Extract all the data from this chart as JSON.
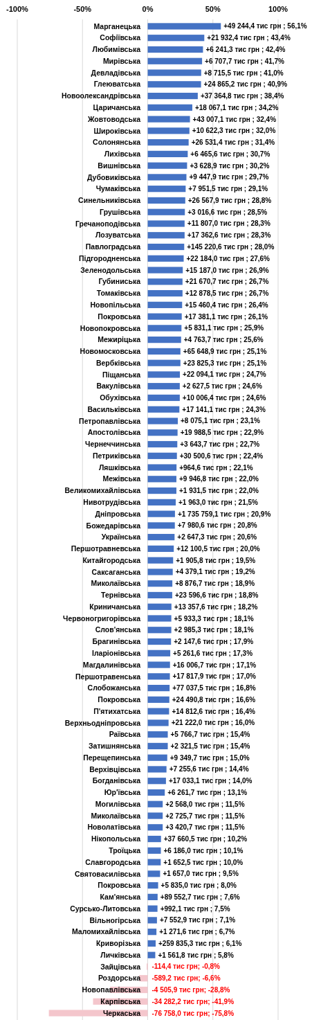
{
  "chart_data": {
    "type": "bar",
    "orientation": "horizontal",
    "categories": [
      "Марганецька",
      "Софіївська",
      "Любимівська",
      "Мирівська",
      "Девладівська",
      "Глеюватська",
      "Новоолександрівська",
      "Царичанська",
      "Жовтоводська",
      "Широківська",
      "Солонянська",
      "Лихівська",
      "Вишнівська",
      "Дубовиківська",
      "Чумаківська",
      "Синельниківська",
      "Грушівська",
      "Гречаноподівська",
      "Лозуватська",
      "Павлоградська",
      "Підгородненська",
      "Зеленодольська",
      "Губиниська",
      "Томаківська",
      "Новопільська",
      "Покровська",
      "Новопокровська",
      "Межиріцька",
      "Новомосковська",
      "Вербківська",
      "Піщанська",
      "Вакулівська",
      "Обухівська",
      "Васильківська",
      "Петропавлівська",
      "Апостолівська",
      "Чернеччинська",
      "Петриківська",
      "Ляшківська",
      "Межівська",
      "Великомихайлівська",
      "Нивотрудівська",
      "Дніпровська",
      "Божедарівська",
      "Українська",
      "Першотравневська",
      "Китайгородська",
      "Саксаганська",
      "Миколаївська",
      "Тернівська",
      "Криничанська",
      "Червоногригорівська",
      "Слов'янська",
      "Брагинівська",
      "Іларіонівська",
      "Магдалинівська",
      "Першотравенська",
      "Слобожанська",
      "Покровська",
      "П'ятихатська",
      "Верхньодніпровська",
      "Раївська",
      "Затишнянська",
      "Перещепинська",
      "Верхівцівська",
      "Богданівська",
      "Юр'ївська",
      "Могилівська",
      "Миколаївська",
      "Новолатівська",
      "Нікопольська",
      "Троїцька",
      "Славгородська",
      "Святовасилівська",
      "Покровська",
      "Кам'янська",
      "Сурсько-Литовська",
      "Вільногірська",
      "Маломихайлівська",
      "Криворізька",
      "Личківська",
      "Зайцівська",
      "Роздорська",
      "Новопавлівська",
      "Карпівська",
      "Черкаська"
    ],
    "values": [
      56.1,
      43.4,
      42.4,
      41.7,
      41.0,
      40.9,
      38.4,
      34.2,
      32.4,
      32.0,
      31.4,
      30.7,
      30.2,
      29.7,
      29.1,
      28.8,
      28.5,
      28.3,
      28.3,
      28.0,
      27.6,
      26.9,
      26.7,
      26.7,
      26.4,
      26.1,
      25.9,
      25.6,
      25.1,
      25.1,
      24.7,
      24.6,
      24.6,
      24.3,
      23.1,
      22.9,
      22.7,
      22.4,
      22.1,
      22.0,
      22.0,
      21.5,
      20.9,
      20.8,
      20.6,
      20.0,
      19.5,
      19.2,
      18.9,
      18.8,
      18.2,
      18.1,
      18.1,
      17.9,
      17.3,
      17.1,
      17.0,
      16.8,
      16.6,
      16.4,
      16.0,
      15.4,
      15.4,
      15.0,
      14.4,
      14.0,
      13.1,
      11.5,
      11.5,
      11.5,
      10.2,
      10.1,
      10.0,
      9.5,
      8.0,
      7.6,
      7.5,
      7.1,
      6.7,
      6.1,
      5.8,
      -0.8,
      -6.6,
      -28.8,
      -41.9,
      -75.8
    ],
    "value_labels": [
      "+49 244,4 тис грн ; 56,1%",
      "+21 932,4 тис грн ; 43,4%",
      "+6 241,3 тис грн ; 42,4%",
      "+6 707,7 тис грн ; 41,7%",
      "+8 715,5 тис грн ; 41,0%",
      "+24 865,2 тис грн ; 40,9%",
      "+37 364,8 тис грн ; 38,4%",
      "+18 067,1 тис грн ; 34,2%",
      "+43 007,1 тис грн ; 32,4%",
      "+10 622,3 тис грн ; 32,0%",
      "+26 531,4 тис грн ; 31,4%",
      "+6 465,6 тис грн ; 30,7%",
      "+3 628,9 тис грн ; 30,2%",
      "+9 447,9 тис грн ; 29,7%",
      "+7 951,5 тис грн ; 29,1%",
      "+26 567,9 тис грн ; 28,8%",
      "+3 016,6 тис грн ; 28,5%",
      "+11 807,0 тис грн ; 28,3%",
      "+17 362,6 тис грн ; 28,3%",
      "+145 220,6 тис грн ; 28,0%",
      "+22 184,0 тис грн ; 27,6%",
      "+15 187,0 тис грн ; 26,9%",
      "+21 670,7 тис грн ; 26,7%",
      "+12 878,5 тис грн ; 26,7%",
      "+15 460,4 тис грн ; 26,4%",
      "+17 381,1 тис грн ; 26,1%",
      "+5 831,1 тис грн ; 25,9%",
      "+4 763,7 тис грн ; 25,6%",
      "+65 648,9 тис грн ; 25,1%",
      "+23 825,3 тис грн ; 25,1%",
      "+22 094,1 тис грн ; 24,7%",
      "+2 627,5 тис грн ; 24,6%",
      "+10 006,4 тис грн ; 24,6%",
      "+17 141,1 тис грн ; 24,3%",
      "+8 075,1 тис грн ; 23,1%",
      "+19 988,5 тис грн ; 22,9%",
      "+3 643,7 тис грн ; 22,7%",
      "+30 500,6 тис грн ; 22,4%",
      "+964,6 тис грн ; 22,1%",
      "+9 946,8 тис грн ; 22,0%",
      "+1 931,5 тис грн ; 22,0%",
      "+1 963,0 тис грн ; 21,5%",
      "+1 735 759,1 тис грн ; 20,9%",
      "+7 980,6 тис грн ; 20,8%",
      "+2 647,3 тис грн ; 20,6%",
      "+12 100,5 тис грн ; 20,0%",
      "+1 905,8 тис грн ; 19,5%",
      "+4 379,1 тис грн ; 19,2%",
      "+8 876,7 тис грн ; 18,9%",
      "+23 596,6 тис грн ; 18,8%",
      "+13 357,6 тис грн ; 18,2%",
      "+5 933,3 тис грн ; 18,1%",
      "+2 985,3 тис грн ; 18,1%",
      "+2 147,6 тис грн ; 17,9%",
      "+5 261,6 тис грн ; 17,3%",
      "+16 006,7 тис грн ; 17,1%",
      "+17 817,9 тис грн ; 17,0%",
      "+77 037,5 тис грн ; 16,8%",
      "+24 490,8 тис грн ; 16,6%",
      "+14 812,6 тис грн ; 16,4%",
      "+21 222,0 тис грн ; 16,0%",
      "+5 766,7 тис грн ; 15,4%",
      "+2 321,5 тис грн ; 15,4%",
      "+9 349,7 тис грн ; 15,0%",
      "+7 255,6 тис грн ; 14,4%",
      "+17 033,1 тис грн ; 14,0%",
      "+6 261,7 тис грн ; 13,1%",
      "+2 568,0 тис грн ; 11,5%",
      "+2 725,7 тис грн ; 11,5%",
      "+3 420,7 тис грн ; 11,5%",
      "+37 660,5 тис грн ; 10,2%",
      "+6 186,0 тис грн ; 10,1%",
      "+1 652,5 тис грн ; 10,0%",
      "+1 657,0 тис грн ; 9,5%",
      "+5 835,0 тис грн ; 8,0%",
      "+89 552,7 тис грн ; 7,6%",
      "+992,1 тис грн ; 7,5%",
      "+7 552,9 тис грн ; 7,1%",
      "+1 271,6 тис грн ; 6,7%",
      "+259 835,3 тис грн ; 6,1%",
      "+1 561,8 тис грн ; 5,8%",
      "-114,4 тис грн; -0,8%",
      "-589,2 тис грн; -6,6%",
      "-4 505,9 тис грн; -28,8%",
      "-34 282,2 тис грн; -41,9%",
      "-76 758,0 тис грн; -75,8%"
    ],
    "colors": [
      "#4472c4",
      "#4472c4",
      "#4472c4",
      "#4472c4",
      "#4472c4",
      "#4472c4",
      "#4472c4",
      "#4472c4",
      "#4472c4",
      "#4472c4",
      "#4472c4",
      "#4472c4",
      "#4472c4",
      "#4472c4",
      "#4472c4",
      "#4472c4",
      "#4472c4",
      "#4472c4",
      "#4472c4",
      "#4472c4",
      "#4472c4",
      "#4472c4",
      "#4472c4",
      "#4472c4",
      "#4472c4",
      "#4472c4",
      "#4472c4",
      "#4472c4",
      "#4472c4",
      "#4472c4",
      "#4472c4",
      "#4472c4",
      "#4472c4",
      "#4472c4",
      "#4472c4",
      "#4472c4",
      "#4472c4",
      "#4472c4",
      "#4472c4",
      "#4472c4",
      "#4472c4",
      "#4472c4",
      "#4472c4",
      "#4472c4",
      "#4472c4",
      "#4472c4",
      "#4472c4",
      "#4472c4",
      "#4472c4",
      "#4472c4",
      "#4472c4",
      "#4472c4",
      "#4472c4",
      "#4472c4",
      "#4472c4",
      "#4472c4",
      "#4472c4",
      "#4472c4",
      "#4472c4",
      "#4472c4",
      "#4472c4",
      "#4472c4",
      "#4472c4",
      "#4472c4",
      "#4472c4",
      "#4472c4",
      "#4472c4",
      "#4472c4",
      "#4472c4",
      "#4472c4",
      "#4472c4",
      "#4472c4",
      "#4472c4",
      "#4472c4",
      "#4472c4",
      "#4472c4",
      "#4472c4",
      "#4472c4",
      "#4472c4",
      "#4472c4",
      "#4472c4",
      "#f4c6cc",
      "#f4c6cc",
      "#f4c6cc",
      "#f4c6cc",
      "#f4c6cc"
    ],
    "xlim": [
      -100,
      100
    ],
    "xticks": [
      {
        "value": -100,
        "label": "-100%"
      },
      {
        "value": -50,
        "label": "-50%"
      },
      {
        "value": 0,
        "label": "0%"
      },
      {
        "value": 50,
        "label": "50%"
      },
      {
        "value": 100,
        "label": "100%"
      }
    ],
    "grid": "x"
  }
}
